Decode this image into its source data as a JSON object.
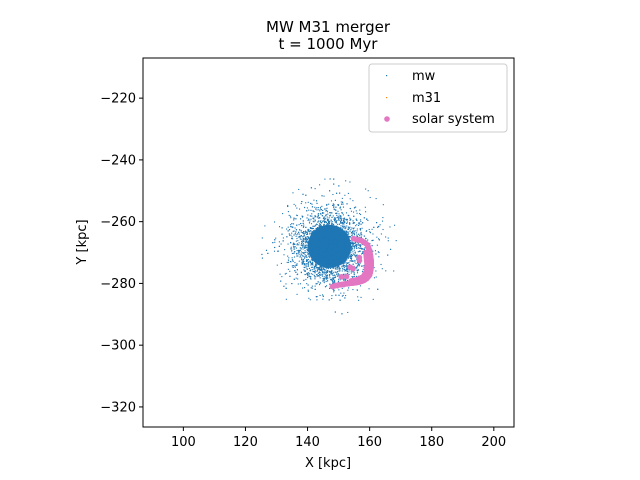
{
  "chart_data": {
    "type": "scatter",
    "title_line1": "MW M31 merger",
    "title_line2": "t = 1000 Myr",
    "xlabel": "X [kpc]",
    "ylabel": "Y [kpc]",
    "xlim": [
      87,
      206.5
    ],
    "ylim": [
      -326.5,
      -207
    ],
    "xticks": [
      "100",
      "120",
      "140",
      "160",
      "180",
      "200"
    ],
    "xtick_values": [
      100,
      120,
      140,
      160,
      180,
      200
    ],
    "yticks": [
      "−220",
      "−240",
      "−260",
      "−280",
      "−300",
      "−320"
    ],
    "ytick_values": [
      -220,
      -240,
      -260,
      -280,
      -300,
      -320
    ],
    "grid": false,
    "legend_position": "top-right",
    "series": [
      {
        "name": "mw",
        "color": "#1f77b4",
        "marker": "pixel",
        "distribution": {
          "center": [
            147,
            -268
          ],
          "core_radius": 7,
          "halo_radius": 22
        }
      },
      {
        "name": "m31",
        "color": "#ff7f0e",
        "marker": "pixel",
        "points": []
      },
      {
        "name": "solar system",
        "color": "#e377c2",
        "marker": "circle",
        "points": [
          [
            154.8,
            -265.5
          ],
          [
            157.5,
            -266.2
          ],
          [
            159.3,
            -267.5
          ],
          [
            160.0,
            -269.5
          ],
          [
            160.3,
            -271.5
          ],
          [
            160.5,
            -273.5
          ],
          [
            160.4,
            -275.5
          ],
          [
            160.0,
            -277.3
          ],
          [
            159.0,
            -278.5
          ],
          [
            157.5,
            -279.3
          ],
          [
            155.5,
            -279.8
          ],
          [
            153.5,
            -280.0
          ],
          [
            151.5,
            -280.3
          ],
          [
            149.5,
            -280.6
          ],
          [
            148.0,
            -281.0
          ],
          [
            159.6,
            -268.5
          ],
          [
            160.2,
            -270.5
          ],
          [
            160.5,
            -272.5
          ],
          [
            160.5,
            -274.5
          ],
          [
            160.2,
            -276.5
          ],
          [
            158.3,
            -279.0
          ],
          [
            156.5,
            -279.6
          ],
          [
            154.5,
            -279.9
          ],
          [
            152.5,
            -280.1
          ],
          [
            150.5,
            -280.4
          ],
          [
            158.8,
            -270.0
          ],
          [
            159.0,
            -272.0
          ],
          [
            159.2,
            -274.0
          ],
          [
            159.0,
            -276.0
          ],
          [
            158.0,
            -277.8
          ],
          [
            156.0,
            -278.8
          ],
          [
            154.0,
            -279.2
          ]
        ]
      }
    ]
  }
}
